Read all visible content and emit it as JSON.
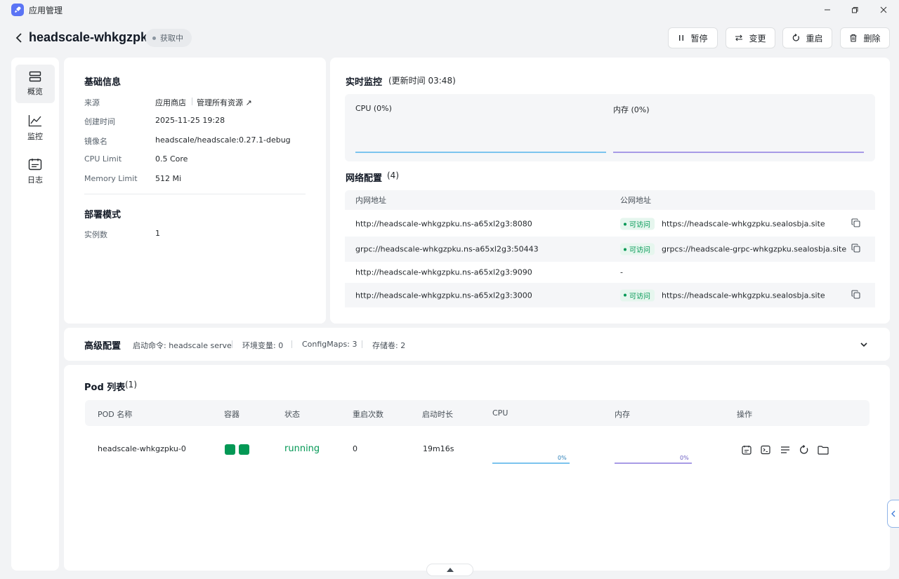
{
  "window": {
    "title": "应用管理",
    "icons": [
      "minimize-icon",
      "restore-icon",
      "close-icon"
    ]
  },
  "header": {
    "app_name": "headscale-whkgzpku",
    "status": "获取中",
    "buttons": {
      "pause": "暂停",
      "change": "变更",
      "restart": "重启",
      "delete": "删除"
    }
  },
  "sidebar": {
    "items": [
      {
        "label": "概览",
        "icon": "overview-icon",
        "active": true
      },
      {
        "label": "监控",
        "icon": "chart-icon",
        "active": false
      },
      {
        "label": "日志",
        "icon": "log-icon",
        "active": false
      }
    ]
  },
  "basic_info": {
    "title": "基础信息",
    "rows": [
      {
        "label": "来源",
        "value": "应用商店",
        "extra": "管理所有资源 ↗"
      },
      {
        "label": "创建时间",
        "value": "2025-11-25 19:28"
      },
      {
        "label": "镜像名",
        "value": "headscale/headscale:0.27.1-debug"
      },
      {
        "label": "CPU Limit",
        "value": "0.5 Core"
      },
      {
        "label": "Memory Limit",
        "value": "512 Mi"
      }
    ],
    "deploy_title": "部署模式",
    "deploy_rows": [
      {
        "label": "实例数",
        "value": "1"
      }
    ]
  },
  "monitor": {
    "title": "实时监控",
    "update_label": "(更新时间  03:48)",
    "cpu_label": "CPU  (0%)",
    "mem_label": "内存  (0%)",
    "cpu_color": "#7cc4ee",
    "mem_color": "#a89be6"
  },
  "network": {
    "title": "网络配置",
    "count": "(4)",
    "col_private": "内网地址",
    "col_public": "公网地址",
    "accessible_label": "可访问",
    "rows": [
      {
        "private": "http://headscale-whkgzpku.ns-a65xl2g3:8080",
        "accessible": true,
        "public": "https://headscale-whkgzpku.sealosbja.site"
      },
      {
        "private": "grpc://headscale-whkgzpku.ns-a65xl2g3:50443",
        "accessible": true,
        "public": "grpcs://headscale-grpc-whkgzpku.sealosbja.site"
      },
      {
        "private": "http://headscale-whkgzpku.ns-a65xl2g3:9090",
        "accessible": false,
        "public": "-"
      },
      {
        "private": "http://headscale-whkgzpku.ns-a65xl2g3:3000",
        "accessible": true,
        "public": "https://headscale-whkgzpku.sealosbja.site"
      }
    ]
  },
  "advanced": {
    "title": "高级配置",
    "start_cmd": "启动命令: headscale serve",
    "env_vars": "环境变量: 0",
    "configmaps": "ConfigMaps: 3",
    "volumes": "存储卷: 2"
  },
  "pods": {
    "title": "Pod 列表",
    "count": "(1)",
    "columns": {
      "name": "POD 名称",
      "containers": "容器",
      "status": "状态",
      "restarts": "重启次数",
      "uptime": "启动时长",
      "cpu": "CPU",
      "memory": "内存",
      "actions": "操作"
    },
    "rows": [
      {
        "name": "headscale-whkgzpku-0",
        "containers": 2,
        "status": "running",
        "restarts": "0",
        "uptime": "19m16s",
        "cpu_pct": "0%",
        "mem_pct": "0%"
      }
    ],
    "status_color": "#039855"
  }
}
